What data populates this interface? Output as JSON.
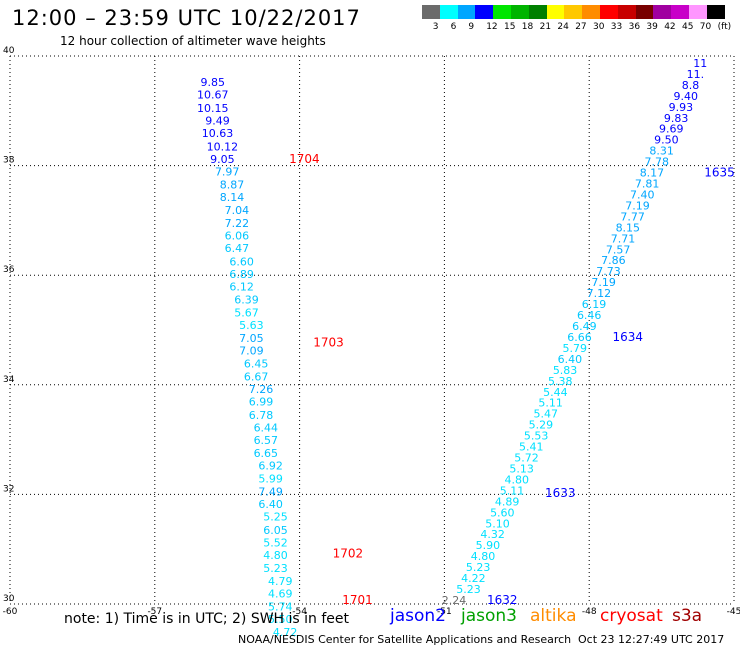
{
  "title": "12:00 – 23:59 UTC 10/22/2017",
  "subtitle": "12 hour collection of altimeter wave heights",
  "colorbar": {
    "labels": [
      "3",
      "6",
      "9",
      "12",
      "15",
      "18",
      "21",
      "24",
      "27",
      "30",
      "33",
      "36",
      "39",
      "42",
      "45",
      "70",
      "(ft)"
    ],
    "colors": [
      "#6b6b6b",
      "#00ffff",
      "#00a6ff",
      "#0000ff",
      "#00e600",
      "#00b400",
      "#008000",
      "#ffff00",
      "#ffc800",
      "#ff8c00",
      "#ff0000",
      "#c80000",
      "#780000",
      "#a000a0",
      "#c800c8",
      "#ff96ff",
      "#000000"
    ]
  },
  "note": "note: 1) Time is in UTC; 2) SWH is in feet",
  "legend": [
    {
      "name": "jason2",
      "color": "#0000ff"
    },
    {
      "name": "jason3",
      "color": "#00a000"
    },
    {
      "name": "altika",
      "color": "#ff8c00"
    },
    {
      "name": "cryosat",
      "color": "#ff0000"
    },
    {
      "name": "s3a",
      "color": "#a00000"
    }
  ],
  "credit": "NOAA/NESDIS Center for Satellite Applications and Research",
  "timestamp": "Oct 23 12:27:49 UTC 2017",
  "chart_data": {
    "type": "scatter",
    "xlim": [
      -60,
      -45
    ],
    "ylim": [
      30,
      40
    ],
    "x_ticks": [
      "-60",
      "-57",
      "-54",
      "-51",
      "-48",
      "-45"
    ],
    "y_ticks": [
      "30",
      "32",
      "34",
      "36",
      "38",
      "40"
    ],
    "grid": true,
    "tracks": [
      {
        "satellite": "cryosat",
        "times": [
          {
            "label": "1704",
            "x": -53.9,
            "y": 38.05
          },
          {
            "label": "1703",
            "x": -53.4,
            "y": 34.7
          },
          {
            "label": "1702",
            "x": -53.0,
            "y": 30.85
          },
          {
            "label": "1701",
            "x": -52.8,
            "y": 30.0
          }
        ],
        "points": [
          {
            "v": "9.85",
            "x": -55.8,
            "y": 39.45,
            "c": "#0000ff"
          },
          {
            "v": "10.67",
            "x": -55.8,
            "y": 39.22,
            "c": "#0000ff"
          },
          {
            "v": "10.15",
            "x": -55.8,
            "y": 38.98,
            "c": "#0000ff"
          },
          {
            "v": "9.49",
            "x": -55.7,
            "y": 38.75,
            "c": "#0000ff"
          },
          {
            "v": "10.63",
            "x": -55.7,
            "y": 38.52,
            "c": "#0000ff"
          },
          {
            "v": "10.12",
            "x": -55.6,
            "y": 38.28,
            "c": "#0000ff"
          },
          {
            "v": "9.05",
            "x": -55.6,
            "y": 38.05,
            "c": "#0000ff"
          },
          {
            "v": "7.97",
            "x": -55.5,
            "y": 37.82,
            "c": "#00a6ff"
          },
          {
            "v": "8.87",
            "x": -55.4,
            "y": 37.58,
            "c": "#00a6ff"
          },
          {
            "v": "8.14",
            "x": -55.4,
            "y": 37.35,
            "c": "#00a6ff"
          },
          {
            "v": "7.04",
            "x": -55.3,
            "y": 37.12,
            "c": "#00a6ff"
          },
          {
            "v": "7.22",
            "x": -55.3,
            "y": 36.88,
            "c": "#00a6ff"
          },
          {
            "v": "6.06",
            "x": -55.3,
            "y": 36.65,
            "c": "#00c8ff"
          },
          {
            "v": "6.47",
            "x": -55.3,
            "y": 36.42,
            "c": "#00c8ff"
          },
          {
            "v": "6.60",
            "x": -55.2,
            "y": 36.18,
            "c": "#00c8ff"
          },
          {
            "v": "6.89",
            "x": -55.2,
            "y": 35.95,
            "c": "#00c8ff"
          },
          {
            "v": "6.12",
            "x": -55.2,
            "y": 35.72,
            "c": "#00c8ff"
          },
          {
            "v": "6.39",
            "x": -55.1,
            "y": 35.48,
            "c": "#00c8ff"
          },
          {
            "v": "5.67",
            "x": -55.1,
            "y": 35.25,
            "c": "#00e0ff"
          },
          {
            "v": "5.63",
            "x": -55.0,
            "y": 35.02,
            "c": "#00e0ff"
          },
          {
            "v": "7.05",
            "x": -55.0,
            "y": 34.78,
            "c": "#00a6ff"
          },
          {
            "v": "7.09",
            "x": -55.0,
            "y": 34.55,
            "c": "#00a6ff"
          },
          {
            "v": "6.45",
            "x": -54.9,
            "y": 34.32,
            "c": "#00c8ff"
          },
          {
            "v": "6.67",
            "x": -54.9,
            "y": 34.08,
            "c": "#00c8ff"
          },
          {
            "v": "7.26",
            "x": -54.8,
            "y": 33.85,
            "c": "#00a6ff"
          },
          {
            "v": "6.99",
            "x": -54.8,
            "y": 33.62,
            "c": "#00c8ff"
          },
          {
            "v": "6.78",
            "x": -54.8,
            "y": 33.38,
            "c": "#00c8ff"
          },
          {
            "v": "6.44",
            "x": -54.7,
            "y": 33.15,
            "c": "#00c8ff"
          },
          {
            "v": "6.57",
            "x": -54.7,
            "y": 32.92,
            "c": "#00c8ff"
          },
          {
            "v": "6.65",
            "x": -54.7,
            "y": 32.68,
            "c": "#00c8ff"
          },
          {
            "v": "6.92",
            "x": -54.6,
            "y": 32.45,
            "c": "#00c8ff"
          },
          {
            "v": "5.99",
            "x": -54.6,
            "y": 32.22,
            "c": "#00e0ff"
          },
          {
            "v": "7.49",
            "x": -54.6,
            "y": 31.98,
            "c": "#00a6ff"
          },
          {
            "v": "6.40",
            "x": -54.6,
            "y": 31.75,
            "c": "#00c8ff"
          },
          {
            "v": "5.25",
            "x": -54.5,
            "y": 31.52,
            "c": "#00e0ff"
          },
          {
            "v": "6.05",
            "x": -54.5,
            "y": 31.28,
            "c": "#00c8ff"
          },
          {
            "v": "5.52",
            "x": -54.5,
            "y": 31.05,
            "c": "#00e0ff"
          },
          {
            "v": "4.80",
            "x": -54.5,
            "y": 30.82,
            "c": "#00e0ff"
          },
          {
            "v": "5.23",
            "x": -54.5,
            "y": 30.58,
            "c": "#00e0ff"
          },
          {
            "v": "4.79",
            "x": -54.4,
            "y": 30.35,
            "c": "#00e0ff"
          },
          {
            "v": "4.69",
            "x": -54.4,
            "y": 30.12,
            "c": "#00e0ff"
          },
          {
            "v": "5.74",
            "x": -54.4,
            "y": 29.88,
            "c": "#00e0ff"
          },
          {
            "v": "5.50",
            "x": -54.4,
            "y": 29.65,
            "c": "#00e0ff"
          },
          {
            "v": "4.72",
            "x": -54.3,
            "y": 29.42,
            "c": "#00e0ff"
          }
        ]
      },
      {
        "satellite": "jason2",
        "times": [
          {
            "label": "1632",
            "x": -49.8,
            "y": 30.0
          },
          {
            "label": "1633",
            "x": -48.6,
            "y": 31.95
          },
          {
            "label": "1634",
            "x": -47.2,
            "y": 34.8
          },
          {
            "label": "1635",
            "x": -45.3,
            "y": 37.8
          }
        ],
        "points": [
          {
            "v": "2.24",
            "x": -50.8,
            "y": 30.0,
            "c": "#6b6b6b"
          },
          {
            "v": "5.23",
            "x": -50.5,
            "y": 30.2,
            "c": "#00e0ff"
          },
          {
            "v": "4.22",
            "x": -50.4,
            "y": 30.4,
            "c": "#00e0ff"
          },
          {
            "v": "5.23",
            "x": -50.3,
            "y": 30.6,
            "c": "#00e0ff"
          },
          {
            "v": "4.80",
            "x": -50.2,
            "y": 30.8,
            "c": "#00e0ff"
          },
          {
            "v": "5.90",
            "x": -50.1,
            "y": 31.0,
            "c": "#00e0ff"
          },
          {
            "v": "4.32",
            "x": -50.0,
            "y": 31.2,
            "c": "#00e0ff"
          },
          {
            "v": "5.10",
            "x": -49.9,
            "y": 31.4,
            "c": "#00e0ff"
          },
          {
            "v": "5.60",
            "x": -49.8,
            "y": 31.6,
            "c": "#00e0ff"
          },
          {
            "v": "4.89",
            "x": -49.7,
            "y": 31.8,
            "c": "#00e0ff"
          },
          {
            "v": "5.11",
            "x": -49.6,
            "y": 32.0,
            "c": "#00e0ff"
          },
          {
            "v": "4.80",
            "x": -49.5,
            "y": 32.2,
            "c": "#00e0ff"
          },
          {
            "v": "5.13",
            "x": -49.4,
            "y": 32.4,
            "c": "#00e0ff"
          },
          {
            "v": "5.72",
            "x": -49.3,
            "y": 32.6,
            "c": "#00e0ff"
          },
          {
            "v": "5.41",
            "x": -49.2,
            "y": 32.8,
            "c": "#00e0ff"
          },
          {
            "v": "5.53",
            "x": -49.1,
            "y": 33.0,
            "c": "#00e0ff"
          },
          {
            "v": "5.29",
            "x": -49.0,
            "y": 33.2,
            "c": "#00e0ff"
          },
          {
            "v": "5.47",
            "x": -48.9,
            "y": 33.4,
            "c": "#00e0ff"
          },
          {
            "v": "5.11",
            "x": -48.8,
            "y": 33.6,
            "c": "#00e0ff"
          },
          {
            "v": "5.44",
            "x": -48.7,
            "y": 33.8,
            "c": "#00e0ff"
          },
          {
            "v": "5.38",
            "x": -48.6,
            "y": 34.0,
            "c": "#00e0ff"
          },
          {
            "v": "5.83",
            "x": -48.5,
            "y": 34.2,
            "c": "#00e0ff"
          },
          {
            "v": "6.40",
            "x": -48.4,
            "y": 34.4,
            "c": "#00c8ff"
          },
          {
            "v": "5.79",
            "x": -48.3,
            "y": 34.6,
            "c": "#00e0ff"
          },
          {
            "v": "6.66",
            "x": -48.2,
            "y": 34.8,
            "c": "#00c8ff"
          },
          {
            "v": "6.49",
            "x": -48.1,
            "y": 35.0,
            "c": "#00c8ff"
          },
          {
            "v": "6.46",
            "x": -48.0,
            "y": 35.2,
            "c": "#00c8ff"
          },
          {
            "v": "6.19",
            "x": -47.9,
            "y": 35.4,
            "c": "#00c8ff"
          },
          {
            "v": "7.12",
            "x": -47.8,
            "y": 35.6,
            "c": "#00a6ff"
          },
          {
            "v": "7.19",
            "x": -47.7,
            "y": 35.8,
            "c": "#00a6ff"
          },
          {
            "v": "7.73",
            "x": -47.6,
            "y": 36.0,
            "c": "#00a6ff"
          },
          {
            "v": "7.86",
            "x": -47.5,
            "y": 36.2,
            "c": "#00a6ff"
          },
          {
            "v": "7.57",
            "x": -47.4,
            "y": 36.4,
            "c": "#00a6ff"
          },
          {
            "v": "7.71",
            "x": -47.3,
            "y": 36.6,
            "c": "#00a6ff"
          },
          {
            "v": "8.15",
            "x": -47.2,
            "y": 36.8,
            "c": "#00a6ff"
          },
          {
            "v": "7.77",
            "x": -47.1,
            "y": 37.0,
            "c": "#00a6ff"
          },
          {
            "v": "7.19",
            "x": -47.0,
            "y": 37.2,
            "c": "#00a6ff"
          },
          {
            "v": "7.40",
            "x": -46.9,
            "y": 37.4,
            "c": "#00a6ff"
          },
          {
            "v": "7.81",
            "x": -46.8,
            "y": 37.6,
            "c": "#00a6ff"
          },
          {
            "v": "8.17",
            "x": -46.7,
            "y": 37.8,
            "c": "#00a6ff"
          },
          {
            "v": "7.78",
            "x": -46.6,
            "y": 38.0,
            "c": "#00a6ff"
          },
          {
            "v": "8.31",
            "x": -46.5,
            "y": 38.2,
            "c": "#00a6ff"
          },
          {
            "v": "9.50",
            "x": -46.4,
            "y": 38.4,
            "c": "#0000ff"
          },
          {
            "v": "9.69",
            "x": -46.3,
            "y": 38.6,
            "c": "#0000ff"
          },
          {
            "v": "9.83",
            "x": -46.2,
            "y": 38.8,
            "c": "#0000ff"
          },
          {
            "v": "9.93",
            "x": -46.1,
            "y": 39.0,
            "c": "#0000ff"
          },
          {
            "v": "9.40",
            "x": -46.0,
            "y": 39.2,
            "c": "#0000ff"
          },
          {
            "v": "8.8",
            "x": -45.9,
            "y": 39.4,
            "c": "#0000ff"
          },
          {
            "v": "11.",
            "x": -45.8,
            "y": 39.6,
            "c": "#0000ff"
          },
          {
            "v": "11",
            "x": -45.7,
            "y": 39.8,
            "c": "#0000ff"
          }
        ]
      }
    ]
  }
}
